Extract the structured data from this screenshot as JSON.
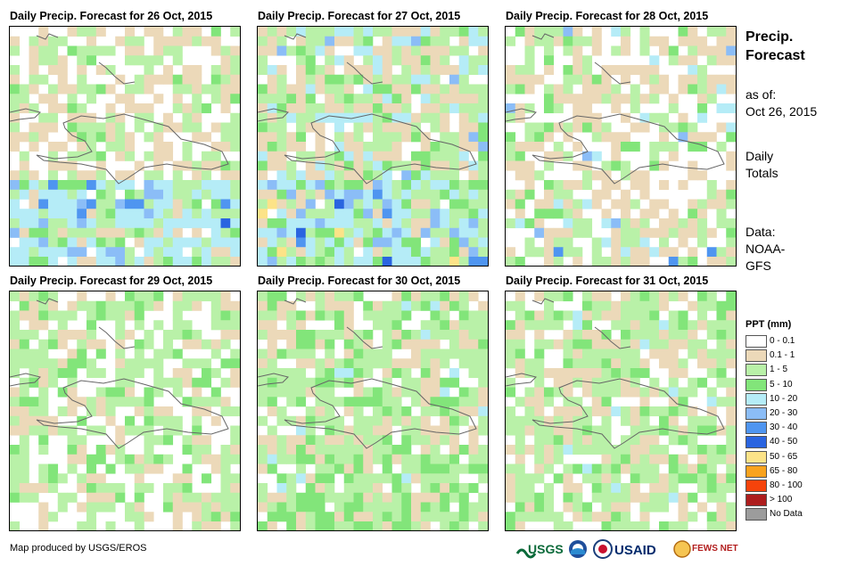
{
  "panels": [
    {
      "title": "Daily Precip. Forecast for 26 Oct, 2015",
      "date": "26 Oct, 2015"
    },
    {
      "title": "Daily Precip. Forecast for 27 Oct, 2015",
      "date": "27 Oct, 2015"
    },
    {
      "title": "Daily Precip. Forecast for 28 Oct, 2015",
      "date": "28 Oct, 2015"
    },
    {
      "title": "Daily Precip. Forecast for 29 Oct, 2015",
      "date": "29 Oct, 2015"
    },
    {
      "title": "Daily Precip. Forecast for 30 Oct, 2015",
      "date": "30 Oct, 2015"
    },
    {
      "title": "Daily Precip. Forecast for 31 Oct, 2015",
      "date": "31 Oct, 2015"
    }
  ],
  "sidebar": {
    "title_line1": "Precip.",
    "title_line2": "Forecast",
    "asof_label": "as of:",
    "asof_date": "Oct 26, 2015",
    "totals_line1": "Daily",
    "totals_line2": "Totals",
    "data_line1": "Data:",
    "data_line2": "NOAA-",
    "data_line3": "GFS"
  },
  "legend": {
    "title": "PPT (mm)",
    "items": [
      {
        "label": "0 - 0.1",
        "color": "#ffffff"
      },
      {
        "label": "0.1 - 1",
        "color": "#ecd9b9"
      },
      {
        "label": "1 - 5",
        "color": "#b9f1a8"
      },
      {
        "label": "5 - 10",
        "color": "#82e57a"
      },
      {
        "label": "10 - 20",
        "color": "#b5ecf7"
      },
      {
        "label": "20 - 30",
        "color": "#8bbdf7"
      },
      {
        "label": "30 - 40",
        "color": "#4f95f0"
      },
      {
        "label": "40 - 50",
        "color": "#2a64e0"
      },
      {
        "label": "50 - 65",
        "color": "#fce388"
      },
      {
        "label": "65 - 80",
        "color": "#f9a31e"
      },
      {
        "label": "80 - 100",
        "color": "#f6430b"
      },
      {
        "label": "> 100",
        "color": "#ad1d1d"
      },
      {
        "label": "No Data",
        "color": "#9c9c9c"
      }
    ]
  },
  "footer": {
    "credit": "Map produced by USGS/EROS"
  },
  "logos": [
    {
      "name": "usgs-logo",
      "text": "USGS"
    },
    {
      "name": "noaa-logo",
      "text": "NOAA"
    },
    {
      "name": "usaid-logo",
      "text": "USAID"
    },
    {
      "name": "fewsnet-logo",
      "text": "FEWS NET"
    }
  ]
}
